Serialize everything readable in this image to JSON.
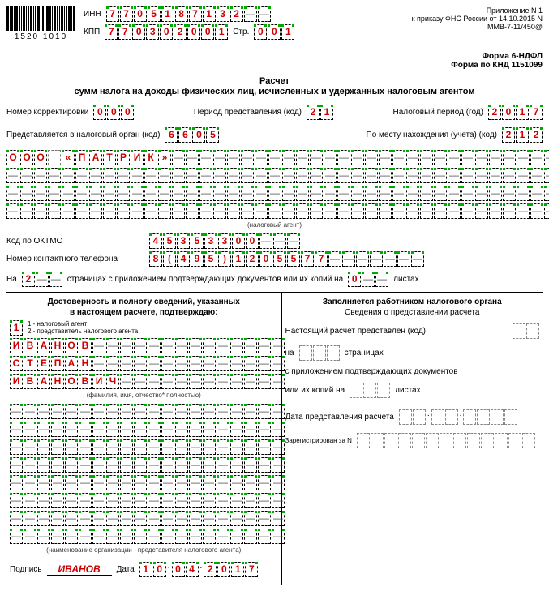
{
  "barcode_text": "1520 1010",
  "labels": {
    "inn": "ИНН",
    "kpp": "КПП",
    "str": "Стр.",
    "appendix": "Приложение N 1",
    "order": "к приказу ФНС России от 14.10.2015 N ММВ-7-11/450@",
    "form1": "Форма 6-НДФЛ",
    "form2": "Форма по КНД 1151099",
    "title1": "Расчет",
    "title2": "сумм налога на доходы физических лиц, исчисленных и удержанных налоговым агентом",
    "correction": "Номер корректировки",
    "period": "Период представления (код)",
    "tax_period": "Налоговый период (год)",
    "tax_organ": "Представляется в налоговый орган (код)",
    "by_place": "По месту нахождения (учета) (код)",
    "agent_caption": "(налоговый агент)",
    "oktmo": "Код по ОКТМО",
    "phone": "Номер контактного телефона",
    "on": "На",
    "pages_text": "страницах с приложением подтверждающих документов или их копий на",
    "sheets": "листах",
    "left_title1": "Достоверность и полноту сведений, указанных",
    "left_title2": "в настоящем расчете, подтверждаю:",
    "role1": "1 - налоговый агент",
    "role2": "2 - представитель налогового агента",
    "fio_caption": "(фамилия, имя, отчество* полностью)",
    "org_caption": "(наименование организации - представителя налогового агента)",
    "signature": "Подпись",
    "date": "Дата",
    "right_title": "Заполняется работником налогового органа",
    "right_sub": "Сведения о представлении расчета",
    "presented": "Настоящий расчет представлен (код)",
    "on2": "на",
    "pages2": "страницах",
    "with_att": "с приложением подтверждающих документов",
    "or_copies": "или их копий на",
    "sheets2": "листах",
    "present_date": "Дата представления расчета",
    "reg_n": "Зарегистрирован за N"
  },
  "values": {
    "inn": "7705187132--",
    "kpp": "770302001",
    "str": "001",
    "correction": "000",
    "period": "21",
    "tax_period": "2017",
    "tax_organ": "6605",
    "by_place": "212",
    "oktmo": "45353300---",
    "phone": "8(495)1205577-------",
    "pages": "2--",
    "att_sheets": "0--",
    "confirm_code": "1",
    "surname": "ИВАНОВ--------------",
    "name": "СТЕПАН--------------",
    "patronymic": "ИВАНОВИЧ------------",
    "sign_name": "ИВАНОВ",
    "sign_date": "10042017"
  },
  "company_line": "ООО «ПАТРИК»----------------------------",
  "style": {
    "filled_color": "#cc0000",
    "corner_color": "#00aa00",
    "border_color": "#000000",
    "empty_border": "#888888"
  }
}
